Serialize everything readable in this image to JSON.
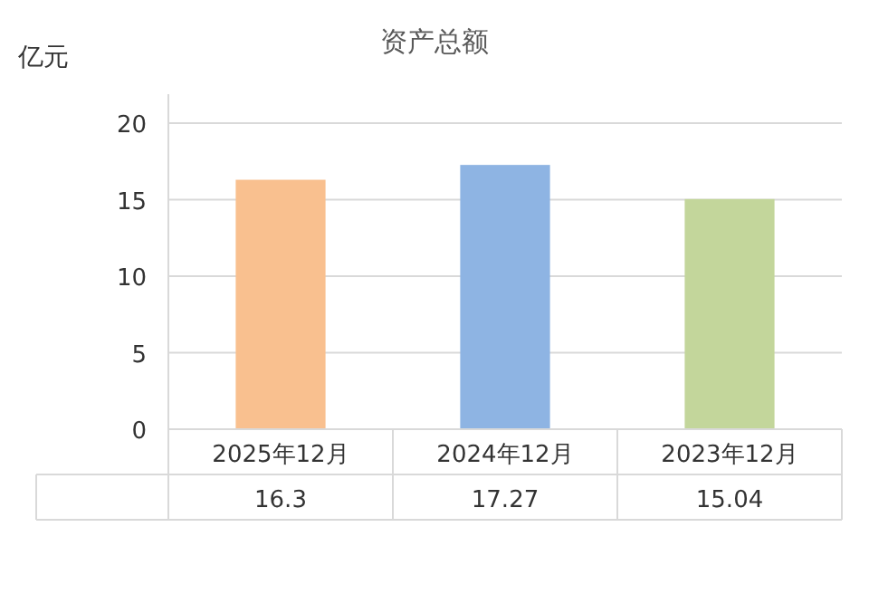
{
  "chart_data": {
    "type": "bar",
    "title": "资产总额",
    "ylabel": "亿元",
    "categories": [
      "2025年12月",
      "2024年12月",
      "2023年12月"
    ],
    "values": [
      16.3,
      17.27,
      15.04
    ],
    "colors": [
      "#f9c08f",
      "#8eb4e3",
      "#c3d69b"
    ],
    "ylim": [
      0,
      20
    ],
    "yticks": [
      0,
      5,
      10,
      15,
      20
    ],
    "grid": "y",
    "data_labels": true
  }
}
